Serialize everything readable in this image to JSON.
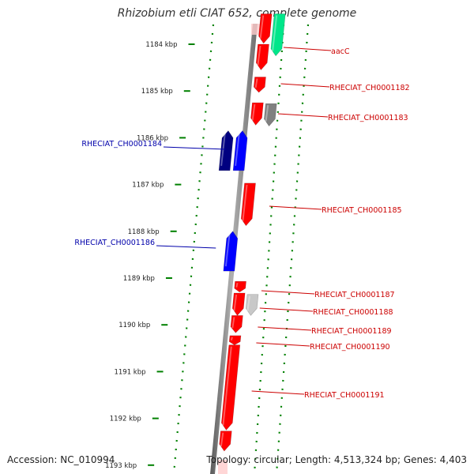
{
  "title": "Rhizobium etli CIAT 652, complete genome",
  "footer": {
    "accession": "Accession: NC_010994",
    "summary": "Topology: circular; Length: 4,513,324 bp; Genes: 4,403"
  },
  "colors": {
    "forward_gene": "#ff0000",
    "forward_partner_gene": "#00e68a",
    "grey_gene": "#808080",
    "light_grey_gene": "#c8c8c8",
    "reverse_gene": "#0000ff",
    "reverse_dark_gene": "#000080",
    "dotted_track": "#008000",
    "backbone": "#808080",
    "label_forward": "#cc0000",
    "label_reverse": "#0000aa"
  },
  "scale_ticks": [
    {
      "label": "1184 kbp",
      "kbp": 1184
    },
    {
      "label": "1185 kbp",
      "kbp": 1185
    },
    {
      "label": "1186 kbp",
      "kbp": 1186
    },
    {
      "label": "1187 kbp",
      "kbp": 1187
    },
    {
      "label": "1188 kbp",
      "kbp": 1188
    },
    {
      "label": "1189 kbp",
      "kbp": 1189
    },
    {
      "label": "1190 kbp",
      "kbp": 1190
    },
    {
      "label": "1191 kbp",
      "kbp": 1191
    },
    {
      "label": "1192 kbp",
      "kbp": 1192
    },
    {
      "label": "1193 kbp",
      "kbp": 1193
    }
  ],
  "genes": [
    {
      "id": "g-top-left",
      "strand": "+",
      "start_kbp": 1183.35,
      "end_kbp": 1183.98,
      "color": "forward_gene",
      "label": ""
    },
    {
      "id": "g-aacC-partner",
      "strand": "+",
      "start_kbp": 1183.35,
      "end_kbp": 1184.25,
      "color": "forward_partner_gene",
      "label": ""
    },
    {
      "id": "g-aacC",
      "strand": "+",
      "start_kbp": 1184.0,
      "end_kbp": 1184.55,
      "color": "forward_gene",
      "label": "aacC"
    },
    {
      "id": "g-1182",
      "strand": "+",
      "start_kbp": 1184.7,
      "end_kbp": 1185.03,
      "color": "forward_gene",
      "label": "RHECIAT_CH0001182"
    },
    {
      "id": "g-1183",
      "strand": "+",
      "start_kbp": 1185.25,
      "end_kbp": 1185.73,
      "color": "forward_gene",
      "label": "RHECIAT_CH0001183"
    },
    {
      "id": "g-1183-grey",
      "strand": "+",
      "start_kbp": 1185.27,
      "end_kbp": 1185.75,
      "color": "grey_gene",
      "label": ""
    },
    {
      "id": "g-1184-dark",
      "strand": "-",
      "start_kbp": 1185.85,
      "end_kbp": 1186.7,
      "color": "reverse_dark_gene",
      "label": ""
    },
    {
      "id": "g-1184",
      "strand": "-",
      "start_kbp": 1185.85,
      "end_kbp": 1186.7,
      "color": "reverse_gene",
      "label": "RHECIAT_CH0001184"
    },
    {
      "id": "g-1185",
      "strand": "+",
      "start_kbp": 1186.97,
      "end_kbp": 1187.88,
      "color": "forward_gene",
      "label": "RHECIAT_CH0001185"
    },
    {
      "id": "g-1186",
      "strand": "-",
      "start_kbp": 1188.0,
      "end_kbp": 1188.85,
      "color": "reverse_gene",
      "label": "RHECIAT_CH0001186"
    },
    {
      "id": "g-1187",
      "strand": "+",
      "start_kbp": 1189.07,
      "end_kbp": 1189.3,
      "color": "forward_gene",
      "label": "RHECIAT_CH0001187"
    },
    {
      "id": "g-1188",
      "strand": "+",
      "start_kbp": 1189.32,
      "end_kbp": 1189.8,
      "color": "forward_gene",
      "label": "RHECIAT_CH0001188"
    },
    {
      "id": "g-1188-grey",
      "strand": "+",
      "start_kbp": 1189.35,
      "end_kbp": 1189.8,
      "color": "light_grey_gene",
      "label": ""
    },
    {
      "id": "g-1189",
      "strand": "+",
      "start_kbp": 1189.8,
      "end_kbp": 1190.17,
      "color": "forward_gene",
      "label": "RHECIAT_CH0001189"
    },
    {
      "id": "g-1190",
      "strand": "+",
      "start_kbp": 1190.23,
      "end_kbp": 1190.43,
      "color": "forward_gene",
      "label": "RHECIAT_CH0001190"
    },
    {
      "id": "g-1191",
      "strand": "+",
      "start_kbp": 1190.43,
      "end_kbp": 1192.25,
      "color": "forward_gene",
      "label": "RHECIAT_CH0001191"
    },
    {
      "id": "g-bottom",
      "strand": "+",
      "start_kbp": 1192.27,
      "end_kbp": 1192.7,
      "color": "forward_gene",
      "label": ""
    }
  ]
}
